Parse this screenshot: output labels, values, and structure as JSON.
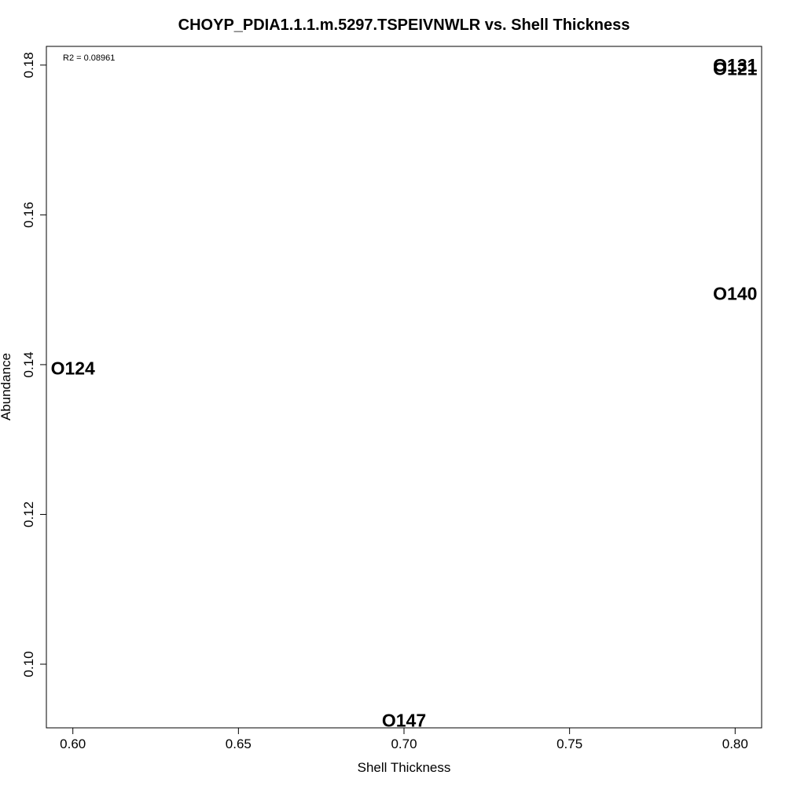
{
  "chart_data": {
    "type": "scatter",
    "title": "CHOYP_PDIA1.1.1.m.5297.TSPEIVNWLR vs. Shell Thickness",
    "xlabel": "Shell Thickness",
    "ylabel": "Abundance",
    "annotation": "R2 = 0.08961",
    "xlim": [
      0.592,
      0.808
    ],
    "ylim": [
      0.0915,
      0.1825
    ],
    "x_ticks": [
      0.6,
      0.65,
      0.7,
      0.75,
      0.8
    ],
    "x_tick_labels": [
      "0.60",
      "0.65",
      "0.70",
      "0.75",
      "0.80"
    ],
    "y_ticks": [
      0.1,
      0.12,
      0.14,
      0.16,
      0.18
    ],
    "y_tick_labels": [
      "0.10",
      "0.12",
      "0.14",
      "0.16",
      "0.18"
    ],
    "grid": false,
    "points": [
      {
        "label": "O131",
        "x": 0.8,
        "y": 0.18
      },
      {
        "label": "O121",
        "x": 0.8,
        "y": 0.1795
      },
      {
        "label": "O140",
        "x": 0.8,
        "y": 0.1495
      },
      {
        "label": "O124",
        "x": 0.6,
        "y": 0.1395
      },
      {
        "label": "O147",
        "x": 0.7,
        "y": 0.0925
      }
    ]
  }
}
